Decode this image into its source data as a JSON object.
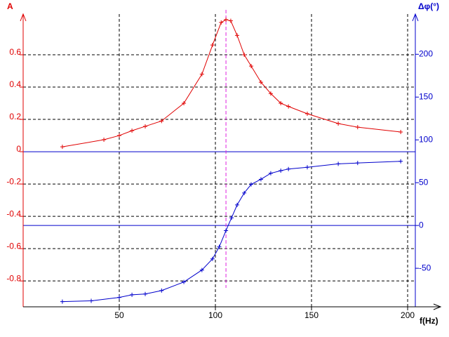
{
  "chart_data": {
    "type": "line",
    "y_label": "A",
    "y2_label": "Δφ(°)",
    "x_label": "f(Hz)",
    "xlim": [
      0,
      204
    ],
    "xticks": [
      50,
      100,
      150,
      200
    ],
    "ylim": [
      -0.96,
      0.852
    ],
    "yticks": [
      -0.8,
      -0.6,
      -0.4,
      -0.2,
      0,
      0.2,
      0.4,
      0.6
    ],
    "y2lim": [
      -95,
      247
    ],
    "y2ticks": [
      -50,
      0,
      50,
      100,
      150,
      200
    ],
    "grid": true,
    "vline": 105.5,
    "vline_color": "#e020e0",
    "series": [
      {
        "name": "A",
        "color": "#e00000",
        "axis": "y",
        "x": [
          20.4,
          42,
          50,
          56.6,
          63.5,
          72,
          83.6,
          93,
          98.5,
          103,
          105.5,
          108,
          111.3,
          115,
          118.6,
          123.7,
          128.8,
          134,
          138,
          147.8,
          163.9,
          174,
          196.4
        ],
        "values": [
          0.03,
          0.074,
          0.1,
          0.13,
          0.157,
          0.19,
          0.3,
          0.48,
          0.66,
          0.8,
          0.817,
          0.81,
          0.72,
          0.6,
          0.53,
          0.43,
          0.36,
          0.3,
          0.28,
          0.235,
          0.174,
          0.152,
          0.122
        ]
      },
      {
        "name": "Δφ",
        "color": "#0000cc",
        "axis": "y2",
        "x": [
          20.4,
          35.4,
          50,
          56.6,
          63.5,
          72,
          83.6,
          93,
          98.5,
          102,
          105.5,
          108.4,
          111.3,
          115,
          118.6,
          123.7,
          128.8,
          134,
          138,
          147.8,
          163.9,
          174,
          196.4
        ],
        "values": [
          -89,
          -88,
          -84,
          -81,
          -80,
          -76,
          -66,
          -52,
          -39,
          -25,
          -6,
          9,
          24,
          38,
          48,
          54,
          61,
          64,
          66,
          68,
          72,
          73,
          75
        ]
      }
    ]
  }
}
